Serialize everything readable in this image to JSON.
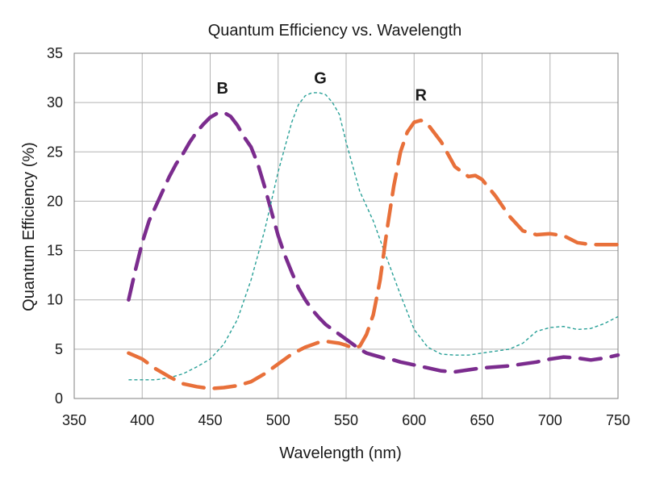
{
  "chart_data": {
    "type": "line",
    "title": "Quantum Efficiency vs. Wavelength",
    "xlabel": "Wavelength (nm)",
    "ylabel": "Quantum Efficiency (%)",
    "xlim": [
      350,
      750
    ],
    "ylim": [
      0,
      35
    ],
    "xticks": [
      "350",
      "400",
      "450",
      "500",
      "550",
      "600",
      "650",
      "700",
      "750"
    ],
    "yticks": [
      "0",
      "5",
      "10",
      "15",
      "20",
      "25",
      "30",
      "35"
    ],
    "grid": true,
    "legend": "none",
    "series": [
      {
        "name": "B",
        "color": "#7b2c8e",
        "style": "long-dash",
        "x": [
          390,
          395,
          400,
          405,
          410,
          415,
          420,
          425,
          430,
          435,
          440,
          445,
          450,
          455,
          460,
          465,
          470,
          475,
          480,
          485,
          490,
          495,
          500,
          505,
          510,
          515,
          520,
          525,
          530,
          535,
          540,
          545,
          550,
          555,
          560,
          565,
          570,
          575,
          580,
          585,
          590,
          600,
          610,
          620,
          630,
          640,
          650,
          660,
          670,
          680,
          690,
          700,
          710,
          720,
          730,
          740,
          750
        ],
        "y": [
          10,
          13,
          15.8,
          18,
          19.5,
          21,
          22.5,
          23.8,
          24.8,
          26,
          27,
          27.8,
          28.5,
          28.9,
          29,
          28.6,
          27.7,
          26.5,
          25.5,
          23.8,
          21.5,
          19,
          16.5,
          14.5,
          12.8,
          11.2,
          10,
          9,
          8.2,
          7.5,
          7,
          6.5,
          6,
          5.5,
          5,
          4.6,
          4.4,
          4.2,
          4,
          3.9,
          3.7,
          3.4,
          3.1,
          2.8,
          2.7,
          2.9,
          3.1,
          3.2,
          3.3,
          3.5,
          3.7,
          4.0,
          4.2,
          4.1,
          3.9,
          4.1,
          4.4
        ]
      },
      {
        "name": "G",
        "color": "#2aa198",
        "style": "short-dash",
        "x": [
          390,
          400,
          410,
          420,
          430,
          440,
          450,
          460,
          470,
          480,
          490,
          500,
          505,
          510,
          515,
          520,
          525,
          530,
          535,
          540,
          545,
          550,
          555,
          560,
          570,
          580,
          590,
          600,
          610,
          620,
          630,
          640,
          650,
          660,
          670,
          680,
          690,
          700,
          710,
          720,
          730,
          740,
          750
        ],
        "y": [
          1.9,
          1.9,
          1.9,
          2.1,
          2.5,
          3.2,
          4,
          5.5,
          8,
          12,
          17,
          23,
          25.5,
          28,
          29.8,
          30.7,
          31,
          31,
          30.8,
          30,
          28.8,
          26,
          23.5,
          21,
          18,
          14.2,
          10.5,
          7,
          5.2,
          4.5,
          4.4,
          4.4,
          4.6,
          4.8,
          5,
          5.6,
          6.8,
          7.2,
          7.3,
          7.0,
          7.1,
          7.6,
          8.3
        ]
      },
      {
        "name": "R",
        "color": "#e8703a",
        "style": "long-dash",
        "x": [
          390,
          400,
          410,
          420,
          430,
          440,
          450,
          460,
          470,
          480,
          490,
          500,
          510,
          520,
          530,
          535,
          540,
          545,
          550,
          555,
          560,
          565,
          570,
          575,
          580,
          585,
          590,
          595,
          600,
          605,
          610,
          620,
          630,
          640,
          645,
          650,
          660,
          670,
          680,
          690,
          700,
          710,
          720,
          730,
          740,
          750
        ],
        "y": [
          4.6,
          4.0,
          3.0,
          2.2,
          1.5,
          1.2,
          1.0,
          1.1,
          1.3,
          1.7,
          2.5,
          3.5,
          4.5,
          5.2,
          5.7,
          5.8,
          5.7,
          5.6,
          5.4,
          5.1,
          5.3,
          6.5,
          8.5,
          12,
          17,
          21.5,
          25,
          27,
          28,
          28.2,
          27.8,
          26,
          23.5,
          22.5,
          22.6,
          22.2,
          20.5,
          18.5,
          17,
          16.6,
          16.7,
          16.5,
          15.8,
          15.6,
          15.6,
          15.6
        ]
      }
    ],
    "annotations": [
      {
        "text": "B",
        "x": 459,
        "y": 31.5
      },
      {
        "text": "G",
        "x": 531,
        "y": 32.5
      },
      {
        "text": "R",
        "x": 605,
        "y": 30.8
      }
    ]
  }
}
